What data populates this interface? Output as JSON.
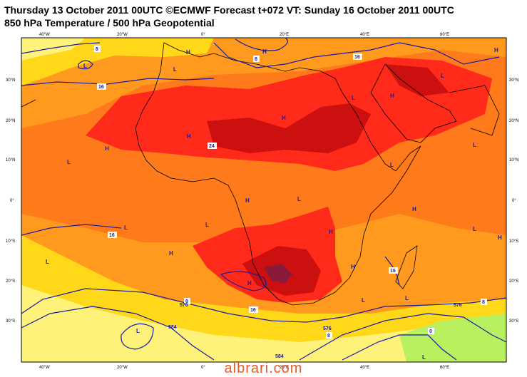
{
  "header": {
    "title": "Thursday 13 October 2011 00UTC ©ECMWF Forecast t+072 VT: Sunday 16 October 2011 00UTC",
    "subtitle": "850 hPa Temperature / 500 hPa Geopotential"
  },
  "axes": {
    "lon_top": [
      "40°W",
      "20°W",
      "0°",
      "20°E",
      "40°E",
      "60°E"
    ],
    "lon_bottom": [
      "40°W",
      "20°W",
      "0°",
      "20°E",
      "40°E",
      "60°E"
    ],
    "lat_left": [
      "30°N",
      "20°N",
      "10°N",
      "0°",
      "10°S",
      "20°S",
      "30°S"
    ],
    "lat_right": [
      "30°N",
      "20°N",
      "10°N",
      "0°",
      "10°S",
      "20°S",
      "30°S"
    ]
  },
  "pressure_labels": [
    "L",
    "H",
    "H",
    "L",
    "H",
    "H",
    "L",
    "L",
    "H",
    "H",
    "L",
    "H",
    "L",
    "L",
    "L",
    "L",
    "H",
    "H",
    "H",
    "H",
    "L",
    "H",
    "L",
    "L",
    "L",
    "L",
    "L",
    "H",
    "H",
    "L"
  ],
  "contour_labels": [
    "8",
    "16",
    "24",
    "16",
    "16",
    "16",
    "8",
    "8",
    "16",
    "576",
    "576",
    "584",
    "584",
    "576",
    "0",
    "8",
    "8"
  ],
  "colors": {
    "pale_yellow": "#fff27a",
    "yellow": "#ffd81a",
    "orange": "#ff9a1e",
    "dark_orange": "#ff7a1a",
    "red": "#ff2a1a",
    "dark_red": "#cc1010",
    "maroon": "#8a1a3a",
    "green": "#b8f060",
    "contour": "#1a1aa0",
    "coast": "#000000"
  },
  "watermark": "albrari.com"
}
